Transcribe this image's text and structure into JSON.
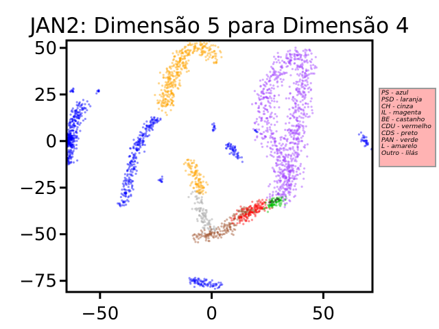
{
  "chart_data": {
    "type": "scatter",
    "title": "JAN2: Dimensão 5 para Dimensão 4",
    "xlabel": "",
    "ylabel": "",
    "xlim": [
      -65,
      72
    ],
    "ylim": [
      -81,
      54
    ],
    "x_ticks": [
      -50,
      0,
      50
    ],
    "x_tick_labels": [
      "−50",
      "0",
      "50"
    ],
    "y_ticks": [
      50,
      25,
      0,
      -25,
      -50,
      -75
    ],
    "y_tick_labels": [
      "50",
      "25",
      "0",
      "−25",
      "−50",
      "−75"
    ],
    "grid": false,
    "legend_placement": "outside-right",
    "legend_entries": [
      "PS - azul",
      "PSD - laranja",
      "CH - cinza",
      "IL - magenta",
      "BE - castanho",
      "CDU - vermelho",
      "CDS - preto",
      "PAN - verde",
      "L - amarelo",
      "Outro - lilás"
    ],
    "series_colors": {
      "azul": "#0000ff",
      "laranja": "#ffa500",
      "cinza": "#a0a0a0",
      "castanho": "#a0522d",
      "vermelho": "#ff0000",
      "preto": "#000000",
      "verde": "#00c000",
      "lilas": "#a040ff"
    },
    "clusters": [
      {
        "color": "azul",
        "n": 260,
        "path": [
          [
            -65,
            -12
          ],
          [
            -63,
            0
          ],
          [
            -61,
            12
          ],
          [
            -59,
            17
          ],
          [
            -57,
            19
          ]
        ],
        "spread": 1.6
      },
      {
        "color": "azul",
        "n": 260,
        "path": [
          [
            -40,
            -35
          ],
          [
            -38,
            -25
          ],
          [
            -36,
            -15
          ],
          [
            -34,
            -5
          ],
          [
            -31,
            2
          ],
          [
            -28,
            8
          ],
          [
            -24,
            13
          ]
        ],
        "spread": 1.2
      },
      {
        "color": "azul",
        "n": 120,
        "path": [
          [
            -65,
            -2
          ],
          [
            -63,
            3
          ]
        ],
        "spread": 1.0
      },
      {
        "color": "azul",
        "n": 10,
        "path": [
          [
            -63,
            26
          ],
          [
            -62,
            27
          ]
        ],
        "spread": 0.5
      },
      {
        "color": "azul",
        "n": 8,
        "path": [
          [
            -51,
            26
          ],
          [
            -50,
            27
          ]
        ],
        "spread": 0.5
      },
      {
        "color": "azul",
        "n": 10,
        "path": [
          [
            -23,
            -22
          ],
          [
            -22,
            -19
          ]
        ],
        "spread": 0.5
      },
      {
        "color": "azul",
        "n": 12,
        "path": [
          [
            1,
            9
          ],
          [
            1,
            6
          ]
        ],
        "spread": 0.5
      },
      {
        "color": "azul",
        "n": 50,
        "path": [
          [
            7,
            -1
          ],
          [
            10,
            -5
          ],
          [
            12,
            -10
          ]
        ],
        "spread": 0.8
      },
      {
        "color": "azul",
        "n": 6,
        "path": [
          [
            20,
            6
          ],
          [
            20,
            5
          ]
        ],
        "spread": 0.4
      },
      {
        "color": "azul",
        "n": 30,
        "path": [
          [
            67,
            3
          ],
          [
            71,
            -3
          ]
        ],
        "spread": 0.8
      },
      {
        "color": "azul",
        "n": 80,
        "path": [
          [
            -10,
            -75
          ],
          [
            -5,
            -76
          ],
          [
            0,
            -77
          ],
          [
            4,
            -78
          ]
        ],
        "spread": 1.2
      },
      {
        "color": "laranja",
        "n": 380,
        "path": [
          [
            -21,
            18
          ],
          [
            -20,
            25
          ],
          [
            -18,
            32
          ],
          [
            -16,
            39
          ],
          [
            -13,
            45
          ],
          [
            -10,
            50
          ],
          [
            -3,
            50
          ],
          [
            2,
            45
          ]
        ],
        "spread": 2.2
      },
      {
        "color": "laranja",
        "n": 110,
        "path": [
          [
            -10,
            -11
          ],
          [
            -8,
            -15
          ],
          [
            -6,
            -22
          ],
          [
            -4,
            -28
          ]
        ],
        "spread": 1.6
      },
      {
        "color": "cinza",
        "n": 90,
        "path": [
          [
            -7,
            -28
          ],
          [
            -5,
            -36
          ],
          [
            -3,
            -42
          ],
          [
            -1,
            -48
          ]
        ],
        "spread": 1.6
      },
      {
        "color": "castanho",
        "n": 200,
        "path": [
          [
            -6,
            -51
          ],
          [
            0,
            -50
          ],
          [
            6,
            -48
          ],
          [
            10,
            -43
          ],
          [
            14,
            -38
          ],
          [
            20,
            -36
          ]
        ],
        "spread": 1.6
      },
      {
        "color": "vermelho",
        "n": 130,
        "path": [
          [
            12,
            -42
          ],
          [
            16,
            -38
          ],
          [
            20,
            -36
          ],
          [
            24,
            -34
          ]
        ],
        "spread": 1.8
      },
      {
        "color": "preto",
        "n": 18,
        "path": [
          [
            26,
            -33
          ],
          [
            30,
            -31
          ]
        ],
        "spread": 0.9
      },
      {
        "color": "verde",
        "n": 60,
        "path": [
          [
            25,
            -35
          ],
          [
            28,
            -33
          ],
          [
            32,
            -31
          ]
        ],
        "spread": 1.3
      },
      {
        "color": "lilas",
        "n": 900,
        "path": [
          [
            30,
            -30
          ],
          [
            32,
            -24
          ],
          [
            32,
            -15
          ],
          [
            30,
            -5
          ],
          [
            24,
            4
          ],
          [
            25,
            12
          ],
          [
            24,
            21
          ],
          [
            26,
            30
          ],
          [
            30,
            38
          ],
          [
            34,
            44
          ],
          [
            38,
            47
          ],
          [
            42,
            45
          ],
          [
            42,
            37
          ],
          [
            40,
            28
          ],
          [
            40,
            20
          ],
          [
            38,
            10
          ],
          [
            36,
            0
          ],
          [
            37,
            -10
          ],
          [
            36,
            -20
          ],
          [
            32,
            -28
          ]
        ],
        "spread": 2.6
      }
    ]
  }
}
